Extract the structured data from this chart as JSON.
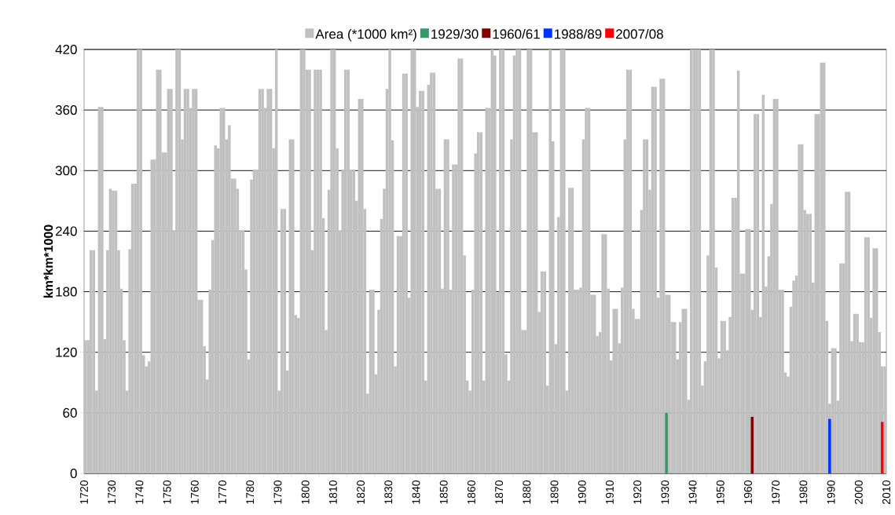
{
  "chart_data": {
    "type": "bar",
    "ylabel": "km*km*1000",
    "xlim": [
      1720,
      2010
    ],
    "ylim": [
      0,
      420
    ],
    "yticks": [
      0,
      60,
      120,
      180,
      240,
      300,
      360,
      420
    ],
    "xticks": [
      1720,
      {
        "value": 1725,
        "label": null
      },
      1730,
      {
        "value": 1735,
        "label": null
      },
      1740,
      {
        "value": 1745,
        "label": null
      },
      1750,
      {
        "value": 1755,
        "label": null
      },
      1760,
      {
        "value": 1765,
        "label": null
      },
      1770,
      {
        "value": 1775,
        "label": null
      },
      1780,
      {
        "value": 1785,
        "label": null
      },
      1790,
      {
        "value": 1795,
        "label": null
      },
      1800,
      {
        "value": 1805,
        "label": null
      },
      1810,
      {
        "value": 1815,
        "label": null
      },
      1820,
      {
        "value": 1825,
        "label": null
      },
      1830,
      {
        "value": 1835,
        "label": null
      },
      1840,
      {
        "value": 1845,
        "label": null
      },
      1850,
      {
        "value": 1855,
        "label": null
      },
      1860,
      {
        "value": 1865,
        "label": null
      },
      1870,
      {
        "value": 1875,
        "label": null
      },
      1880,
      {
        "value": 1885,
        "label": null
      },
      1890,
      {
        "value": 1895,
        "label": null
      },
      1900,
      {
        "value": 1905,
        "label": null
      },
      1910,
      {
        "value": 1915,
        "label": null
      },
      1920,
      {
        "value": 1925,
        "label": null
      },
      1930,
      {
        "value": 1935,
        "label": null
      },
      1940,
      {
        "value": 1945,
        "label": null
      },
      1950,
      {
        "value": 1955,
        "label": null
      },
      1960,
      {
        "value": 1965,
        "label": null
      },
      1970,
      {
        "value": 1975,
        "label": null
      },
      1980,
      {
        "value": 1985,
        "label": null
      },
      1990,
      {
        "value": 1995,
        "label": null
      },
      2000,
      {
        "value": 2005,
        "label": null
      },
      2010
    ],
    "grid": "y",
    "legend": "top",
    "series": [
      {
        "name": "Area (*1000 km²)",
        "color": "#c0c0c0",
        "x": [
          1720,
          1721,
          1722,
          1723,
          1724,
          1725,
          1726,
          1727,
          1728,
          1729,
          1730,
          1731,
          1732,
          1733,
          1734,
          1735,
          1736,
          1737,
          1738,
          1739,
          1740,
          1741,
          1742,
          1743,
          1744,
          1745,
          1746,
          1747,
          1748,
          1749,
          1750,
          1751,
          1752,
          1753,
          1754,
          1755,
          1756,
          1757,
          1758,
          1759,
          1760,
          1761,
          1762,
          1763,
          1764,
          1765,
          1766,
          1767,
          1768,
          1769,
          1770,
          1771,
          1772,
          1773,
          1774,
          1775,
          1776,
          1777,
          1778,
          1779,
          1780,
          1781,
          1782,
          1783,
          1784,
          1785,
          1786,
          1787,
          1788,
          1789,
          1790,
          1791,
          1792,
          1793,
          1794,
          1795,
          1796,
          1797,
          1798,
          1799,
          1800,
          1801,
          1802,
          1803,
          1804,
          1805,
          1806,
          1807,
          1808,
          1809,
          1810,
          1811,
          1812,
          1813,
          1814,
          1815,
          1816,
          1817,
          1818,
          1819,
          1820,
          1821,
          1822,
          1823,
          1824,
          1825,
          1826,
          1827,
          1828,
          1829,
          1830,
          1831,
          1832,
          1833,
          1834,
          1835,
          1836,
          1837,
          1838,
          1839,
          1840,
          1841,
          1842,
          1843,
          1844,
          1845,
          1846,
          1847,
          1848,
          1849,
          1850,
          1851,
          1852,
          1853,
          1854,
          1855,
          1856,
          1857,
          1858,
          1859,
          1860,
          1861,
          1862,
          1863,
          1864,
          1865,
          1866,
          1867,
          1868,
          1869,
          1870,
          1871,
          1872,
          1873,
          1874,
          1875,
          1876,
          1877,
          1878,
          1879,
          1880,
          1881,
          1882,
          1883,
          1884,
          1885,
          1886,
          1887,
          1888,
          1889,
          1890,
          1891,
          1892,
          1893,
          1894,
          1895,
          1896,
          1897,
          1898,
          1899,
          1900,
          1901,
          1902,
          1903,
          1904,
          1905,
          1906,
          1907,
          1908,
          1909,
          1910,
          1911,
          1912,
          1913,
          1914,
          1915,
          1916,
          1917,
          1918,
          1919,
          1920,
          1921,
          1922,
          1923,
          1924,
          1925,
          1926,
          1927,
          1928,
          1929,
          1930,
          1931,
          1932,
          1933,
          1934,
          1935,
          1936,
          1937,
          1938,
          1939,
          1940,
          1941,
          1942,
          1943,
          1944,
          1945,
          1946,
          1947,
          1948,
          1949,
          1950,
          1951,
          1952,
          1953,
          1954,
          1955,
          1956,
          1957,
          1958,
          1959,
          1960,
          1961,
          1962,
          1963,
          1964,
          1965,
          1966,
          1967,
          1968,
          1969,
          1970,
          1971,
          1972,
          1973,
          1974,
          1975,
          1976,
          1977,
          1978,
          1979,
          1980,
          1981,
          1982,
          1983,
          1984,
          1985,
          1986,
          1987,
          1988,
          1989,
          1990,
          1991,
          1992,
          1993,
          1994,
          1995,
          1996,
          1997,
          1998,
          1999,
          2000,
          2001,
          2002,
          2003,
          2004,
          2005,
          2006,
          2007,
          2008,
          2009
        ],
        "values": [
          132,
          132,
          221,
          221,
          82,
          363,
          363,
          133,
          221,
          282,
          280,
          280,
          221,
          183,
          132,
          82,
          222,
          287,
          287,
          420,
          420,
          117,
          106,
          111,
          311,
          311,
          400,
          400,
          318,
          318,
          381,
          381,
          241,
          420,
          420,
          331,
          381,
          381,
          362,
          381,
          381,
          172,
          172,
          126,
          93,
          182,
          231,
          325,
          322,
          362,
          362,
          331,
          345,
          292,
          292,
          282,
          241,
          241,
          202,
          113,
          291,
          301,
          301,
          381,
          381,
          362,
          381,
          381,
          322,
          420,
          82,
          262,
          262,
          102,
          331,
          331,
          157,
          154,
          420,
          420,
          400,
          400,
          221,
          400,
          400,
          400,
          253,
          142,
          281,
          420,
          420,
          322,
          241,
          301,
          400,
          400,
          301,
          301,
          270,
          371,
          371,
          262,
          79,
          182,
          182,
          98,
          162,
          252,
          282,
          381,
          420,
          330,
          106,
          235,
          235,
          396,
          396,
          174,
          420,
          420,
          363,
          379,
          379,
          92,
          385,
          397,
          397,
          282,
          282,
          183,
          331,
          331,
          182,
          306,
          306,
          411,
          411,
          216,
          92,
          82,
          182,
          317,
          338,
          338,
          92,
          362,
          362,
          420,
          414,
          179,
          420,
          420,
          118,
          92,
          331,
          414,
          420,
          420,
          142,
          142,
          420,
          420,
          338,
          338,
          160,
          200,
          200,
          87,
          420,
          329,
          128,
          254,
          420,
          420,
          82,
          283,
          283,
          182,
          182,
          184,
          331,
          362,
          362,
          177,
          177,
          136,
          140,
          237,
          237,
          183,
          112,
          163,
          163,
          129,
          184,
          331,
          400,
          400,
          163,
          153,
          153,
          261,
          331,
          331,
          281,
          383,
          383,
          174,
          391,
          391,
          177,
          177,
          150,
          150,
          113,
          150,
          163,
          163,
          73,
          420,
          420,
          420,
          420,
          87,
          111,
          216,
          420,
          420,
          204,
          114,
          151,
          151,
          122,
          155,
          273,
          273,
          399,
          198,
          198,
          242,
          242,
          162,
          356,
          356,
          155,
          375,
          185,
          215,
          267,
          371,
          371,
          182,
          182,
          100,
          96,
          165,
          191,
          196,
          326,
          326,
          261,
          257,
          257,
          189,
          356,
          356,
          407,
          407,
          151,
          69,
          124,
          124,
          72,
          208,
          208,
          279,
          279,
          131,
          158,
          158,
          130,
          130,
          234,
          234,
          154,
          223,
          223,
          140,
          106,
          106
        ]
      },
      {
        "name": "1929/30",
        "color": "#339966",
        "x": [
          1930
        ],
        "values": [
          60
        ]
      },
      {
        "name": "1960/61",
        "color": "#800000",
        "x": [
          1961
        ],
        "values": [
          56
        ]
      },
      {
        "name": "1988/89",
        "color": "#0033ff",
        "x": [
          1989
        ],
        "values": [
          54
        ]
      },
      {
        "name": "2007/08",
        "color": "#ff0000",
        "x": [
          2008
        ],
        "values": [
          51
        ]
      }
    ]
  }
}
